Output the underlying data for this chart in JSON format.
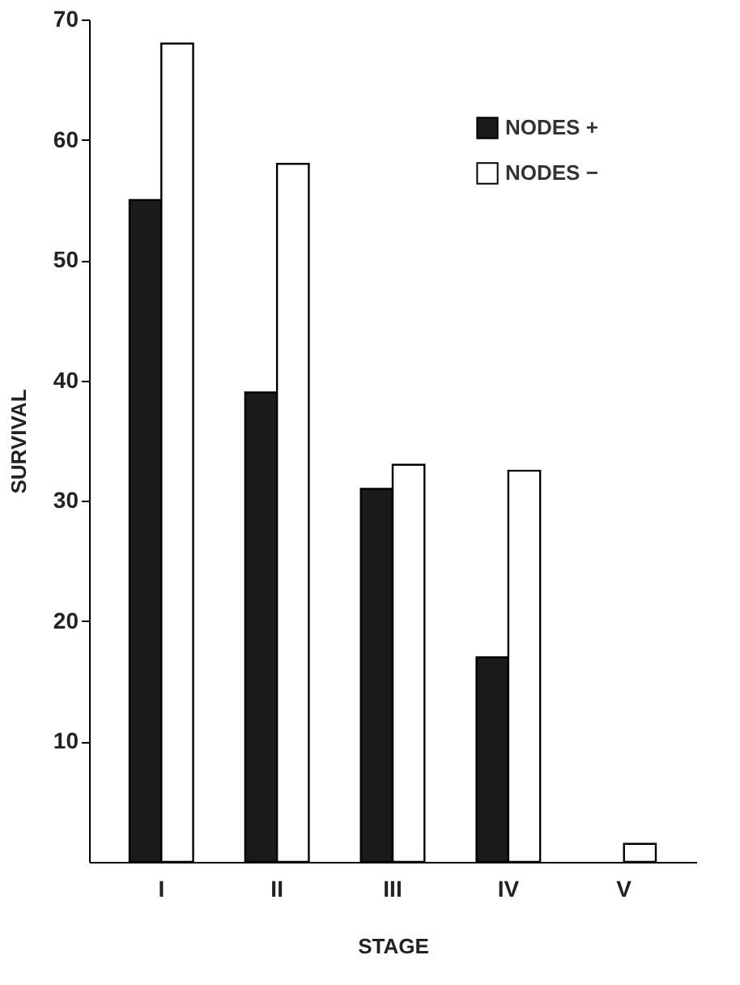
{
  "chart_data": {
    "type": "bar",
    "xlabel": "STAGE",
    "ylabel": "SURVIVAL",
    "categories": [
      "I",
      "II",
      "III",
      "IV",
      "V"
    ],
    "series": [
      {
        "name": "NODES +",
        "color": "#1a1a1a",
        "values": [
          55,
          39,
          31,
          17,
          null
        ]
      },
      {
        "name": "NODES −",
        "color": "#ffffff",
        "values": [
          68,
          58,
          33,
          32.5,
          1.5
        ]
      }
    ],
    "ylim": [
      0,
      70
    ],
    "yticks": [
      10,
      20,
      30,
      40,
      50,
      60,
      70
    ],
    "grid": false,
    "legend": "top right"
  }
}
